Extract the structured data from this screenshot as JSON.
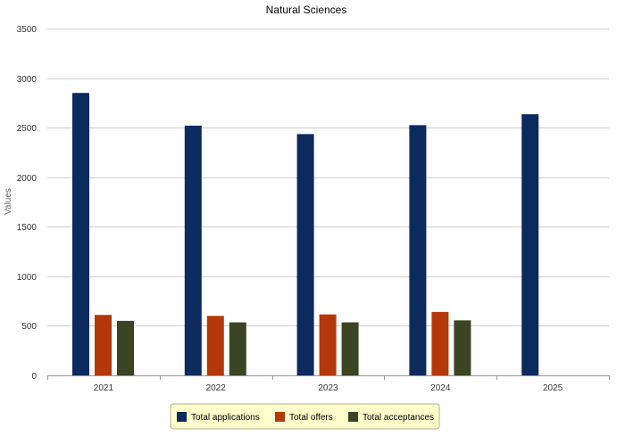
{
  "chart_data": {
    "type": "bar",
    "title": "Natural Sciences",
    "xlabel": "",
    "ylabel": "Values",
    "categories": [
      "2021",
      "2022",
      "2023",
      "2024",
      "2025"
    ],
    "series": [
      {
        "name": "Total applications",
        "color": "#0d2a5c",
        "values": [
          2850,
          2520,
          2435,
          2525,
          2635
        ]
      },
      {
        "name": "Total offers",
        "color": "#b5380a",
        "values": [
          610,
          600,
          615,
          640,
          null
        ]
      },
      {
        "name": "Total acceptances",
        "color": "#3b4524",
        "values": [
          550,
          535,
          535,
          555,
          null
        ]
      }
    ],
    "ylim": [
      0,
      3500
    ],
    "yticks": [
      0,
      500,
      1000,
      1500,
      2000,
      2500,
      3000,
      3500
    ],
    "grid": true,
    "legend": "bottom"
  }
}
